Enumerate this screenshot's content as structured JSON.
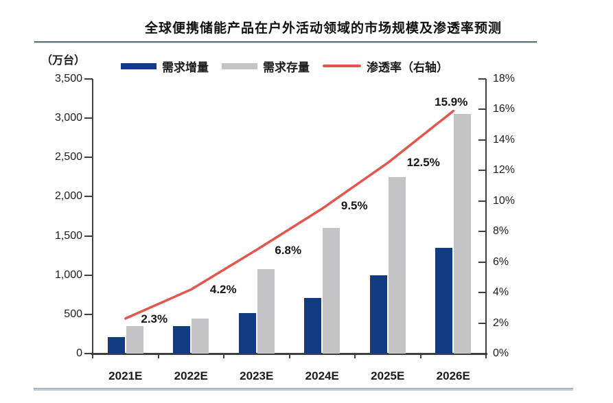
{
  "chart_data": {
    "type": "bar+line",
    "title": "全球便携储能产品在户外活动领域的市场规模及渗透率预测",
    "categories": [
      "2021E",
      "2022E",
      "2023E",
      "2024E",
      "2025E",
      "2026E"
    ],
    "series": [
      {
        "name": "需求增量",
        "type": "bar",
        "axis": "left",
        "color": "#113b82",
        "values": [
          210,
          350,
          520,
          710,
          1000,
          1350
        ]
      },
      {
        "name": "需求存量",
        "type": "bar",
        "axis": "left",
        "color": "#c4c4c6",
        "values": [
          350,
          450,
          1080,
          1600,
          2250,
          3050
        ]
      },
      {
        "name": "渗透率（右轴）",
        "type": "line",
        "axis": "right",
        "color": "#e6544e",
        "values": [
          2.3,
          4.2,
          6.8,
          9.5,
          12.5,
          15.9
        ],
        "point_labels": [
          "2.3%",
          "4.2%",
          "6.8%",
          "9.5%",
          "12.5%",
          "15.9%"
        ]
      }
    ],
    "left_axis": {
      "unit": "（万台）",
      "min": 0,
      "max": 3500,
      "step": 500,
      "tick_labels": [
        "0",
        "500",
        "1,000",
        "1,500",
        "2,000",
        "2,500",
        "3,000",
        "3,500"
      ]
    },
    "right_axis": {
      "min": 0,
      "max": 18,
      "step": 2,
      "tick_labels": [
        "0%",
        "2%",
        "4%",
        "6%",
        "8%",
        "10%",
        "12%",
        "14%",
        "16%",
        "18%"
      ]
    },
    "legend_position": "top",
    "grid": false
  }
}
